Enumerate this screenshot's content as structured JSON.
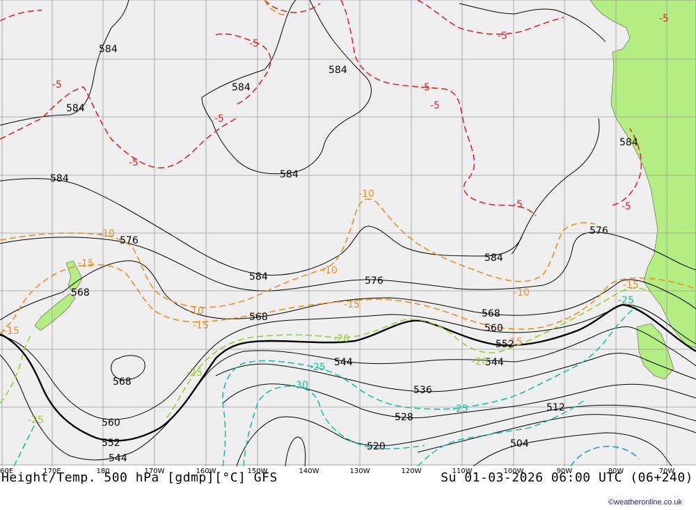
{
  "title": "Height/Temp. 500 hPa [gdmp][°C] GFS",
  "valid_time": "Su 01-03-2026 06:00 UTC (06+240)",
  "credit": "©weatheronline.co.uk",
  "longitude_labels": [
    "60E",
    "170E",
    "180",
    "170W",
    "160W",
    "150W",
    "140W",
    "130W",
    "120W",
    "110W",
    "100W",
    "90W",
    "80W",
    "70W"
  ],
  "colors": {
    "ocean": "#efefef",
    "land": "#b4ee82",
    "grid": "#9a9a9a",
    "height_contour": "#000000",
    "temp_minus5": "#e8202a",
    "temp_minus10_15": "#f08c1e",
    "temp_minus20_25": "#96d22a",
    "temp_minus25_30": "#14c3a0",
    "temp_minus35": "#1e96e6"
  },
  "height_labels": [
    "584",
    "584",
    "584",
    "584",
    "584",
    "584",
    "584",
    "584",
    "576",
    "576",
    "576",
    "584",
    "584",
    "568",
    "568",
    "568",
    "560",
    "552",
    "544",
    "568",
    "560",
    "552",
    "544",
    "536",
    "528",
    "520",
    "512",
    "504"
  ],
  "temp_labels": [
    "-5",
    "-5",
    "-5",
    "-5",
    "-5",
    "-5",
    "-5",
    "-5",
    "-5",
    "-5",
    "-10",
    "-10",
    "-10",
    "-10",
    "-10",
    "-15",
    "-15",
    "-15",
    "-15",
    "-15",
    "-15",
    "-20",
    "-20",
    "-25",
    "-25",
    "-25",
    "-25",
    "-25",
    "-30"
  ]
}
